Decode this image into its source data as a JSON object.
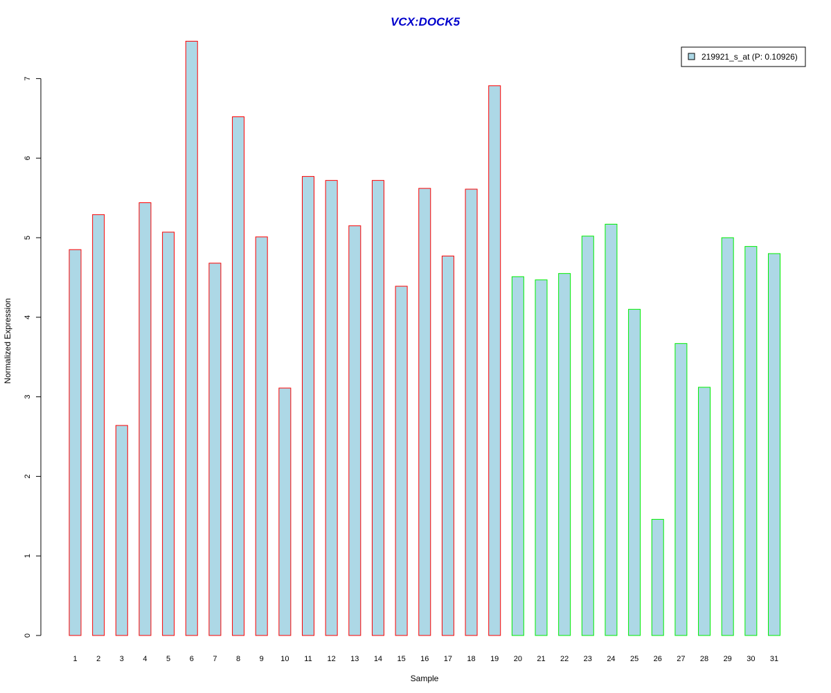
{
  "chart_data": {
    "type": "bar",
    "title": "VCX:DOCK5",
    "xlabel": "Sample",
    "ylabel": "Normalized Expression",
    "ylim": [
      0,
      7.5
    ],
    "yticks": [
      0,
      1,
      2,
      3,
      4,
      5,
      6,
      7
    ],
    "categories": [
      "1",
      "2",
      "3",
      "4",
      "5",
      "6",
      "7",
      "8",
      "9",
      "10",
      "11",
      "12",
      "13",
      "14",
      "15",
      "16",
      "17",
      "18",
      "19",
      "20",
      "21",
      "22",
      "23",
      "24",
      "25",
      "26",
      "27",
      "28",
      "29",
      "30",
      "31"
    ],
    "values": [
      4.85,
      5.29,
      2.64,
      5.44,
      5.07,
      7.47,
      4.68,
      6.52,
      5.01,
      3.11,
      5.77,
      5.72,
      5.15,
      5.72,
      4.39,
      5.62,
      4.77,
      5.61,
      6.91,
      4.51,
      4.47,
      4.55,
      5.02,
      5.17,
      4.1,
      1.46,
      3.67,
      3.12,
      5.0,
      4.89,
      4.8
    ],
    "group_a_count": 19,
    "fill_color": "#add8e6",
    "border_colors": {
      "group_a": "#ff0000",
      "group_b": "#00ee00"
    },
    "title_color": "#0000cc",
    "legend": {
      "label": "219921_s_at (P: 0.10926)",
      "position": "top-right"
    },
    "grid": false
  }
}
